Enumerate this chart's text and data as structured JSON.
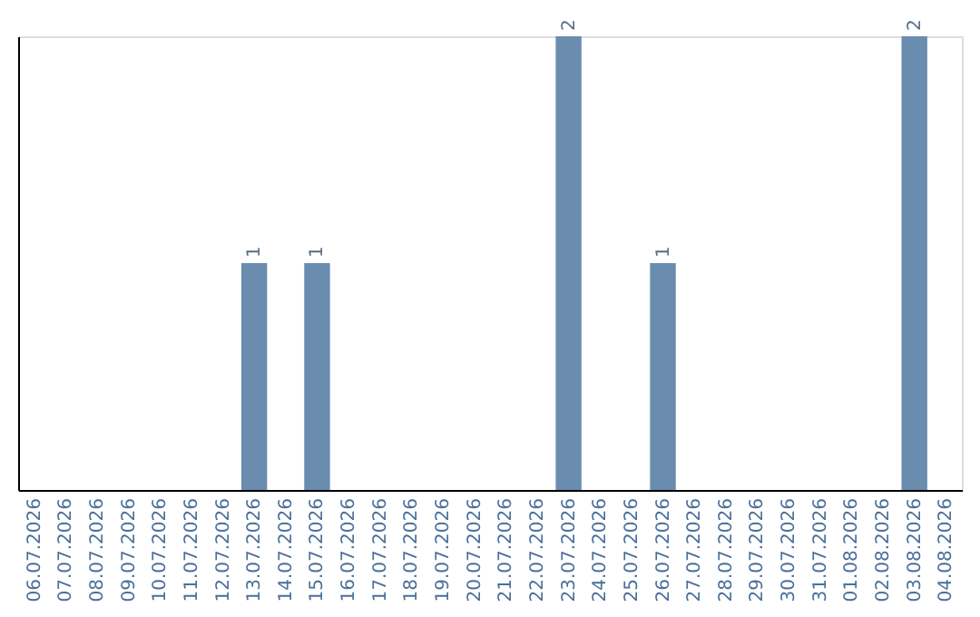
{
  "chart_data": {
    "type": "bar",
    "categories": [
      "06.07.2026",
      "07.07.2026",
      "08.07.2026",
      "09.07.2026",
      "10.07.2026",
      "11.07.2026",
      "12.07.2026",
      "13.07.2026",
      "14.07.2026",
      "15.07.2026",
      "16.07.2026",
      "17.07.2026",
      "18.07.2026",
      "19.07.2026",
      "20.07.2026",
      "21.07.2026",
      "22.07.2026",
      "23.07.2026",
      "24.07.2026",
      "25.07.2026",
      "26.07.2026",
      "27.07.2026",
      "28.07.2026",
      "29.07.2026",
      "30.07.2026",
      "31.07.2026",
      "01.08.2026",
      "02.08.2026",
      "03.08.2026",
      "04.08.2026"
    ],
    "values": [
      0,
      0,
      0,
      0,
      0,
      0,
      0,
      1,
      0,
      1,
      0,
      0,
      0,
      0,
      0,
      0,
      0,
      2,
      0,
      0,
      1,
      0,
      0,
      0,
      0,
      0,
      0,
      0,
      2,
      0
    ],
    "value_labels": [
      null,
      null,
      null,
      null,
      null,
      null,
      null,
      "1",
      null,
      "1",
      null,
      null,
      null,
      null,
      null,
      null,
      null,
      "2",
      null,
      null,
      "1",
      null,
      null,
      null,
      null,
      null,
      null,
      null,
      "2",
      null
    ],
    "color": "#6a8caf",
    "tick_labels": "x",
    "grid": false
  }
}
